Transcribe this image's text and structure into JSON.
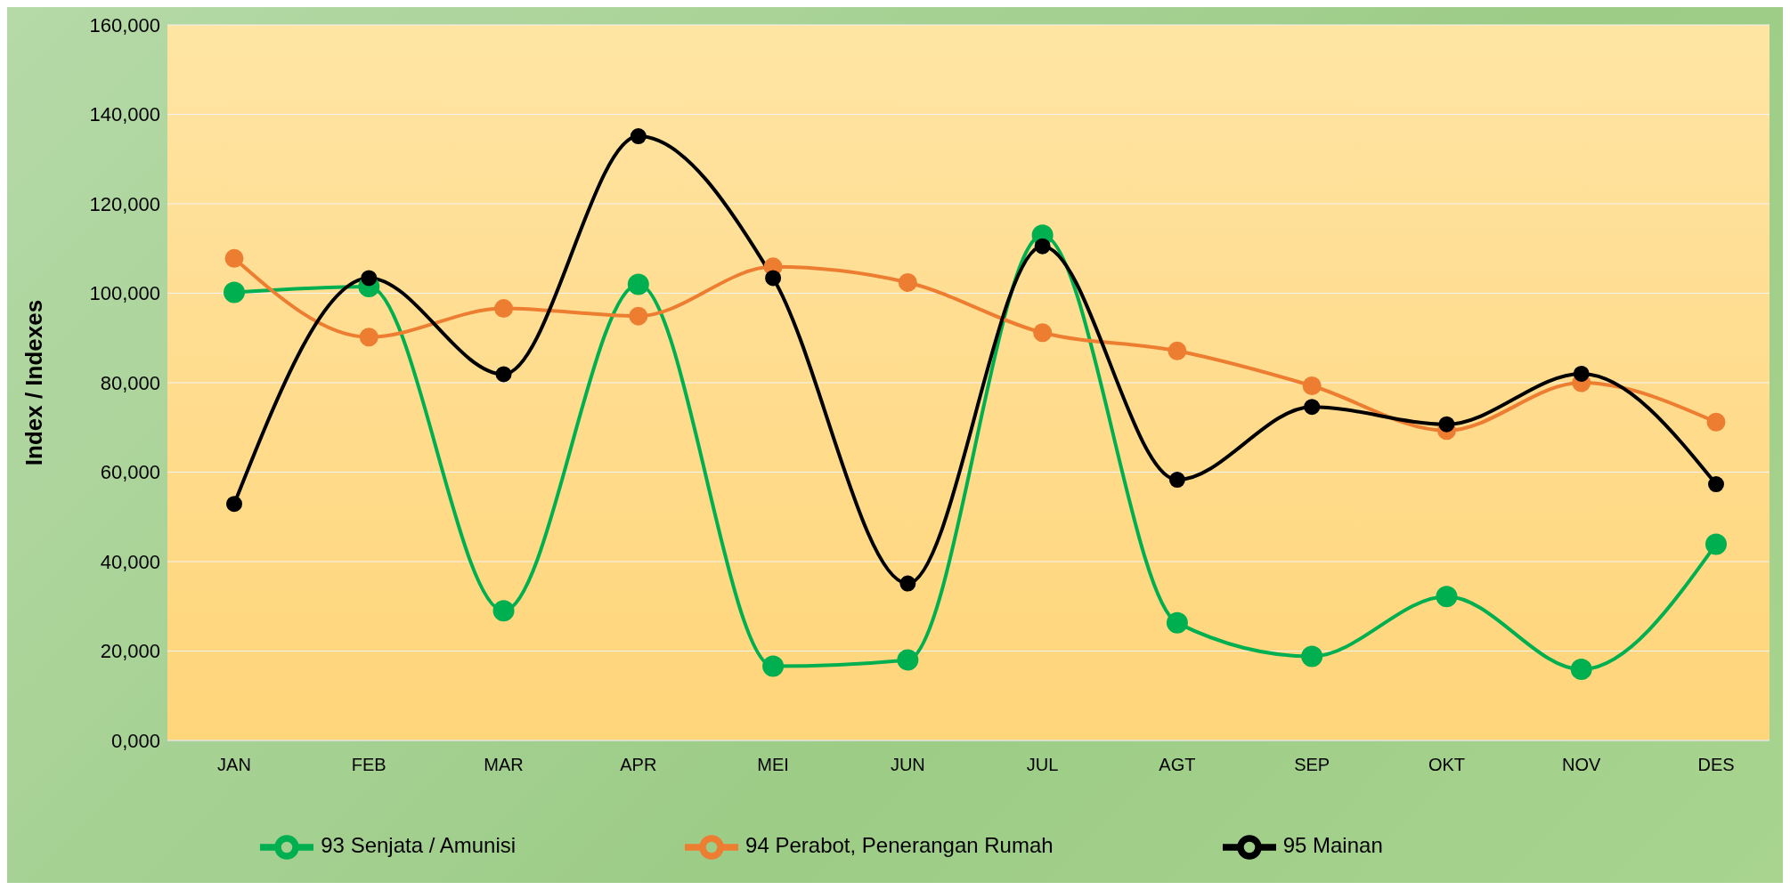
{
  "chart_data": {
    "type": "line",
    "ylabel": "Index / Indexes",
    "categories": [
      "JAN",
      "FEB",
      "MAR",
      "APR",
      "MEI",
      "JUN",
      "JUL",
      "AGT",
      "SEP",
      "OKT",
      "NOV",
      "DES"
    ],
    "series": [
      {
        "name": "93 Senjata / Amunisi",
        "color": "#00b050",
        "values": [
          100200,
          101500,
          29000,
          102000,
          16600,
          18000,
          113000,
          26300,
          18800,
          32200,
          15900,
          43900
        ]
      },
      {
        "name": "94 Perabot, Penerangan Rumah",
        "color": "#ed7d31",
        "values": [
          107800,
          90200,
          96600,
          94900,
          105900,
          102400,
          91200,
          87100,
          79300,
          69300,
          80000,
          71200
        ]
      },
      {
        "name": "95 Mainan",
        "color": "#000000",
        "values": [
          52900,
          103400,
          81900,
          135100,
          103400,
          35100,
          110500,
          58300,
          74600,
          70700,
          82000,
          57300
        ]
      }
    ],
    "ylim": [
      0,
      160000
    ],
    "yticks": [
      {
        "value": 0,
        "label": "0,000"
      },
      {
        "value": 20000,
        "label": "20,000"
      },
      {
        "value": 40000,
        "label": "40,000"
      },
      {
        "value": 60000,
        "label": "60,000"
      },
      {
        "value": 80000,
        "label": "80,000"
      },
      {
        "value": 100000,
        "label": "100,000"
      },
      {
        "value": 120000,
        "label": "120,000"
      },
      {
        "value": 140000,
        "label": "140,000"
      },
      {
        "value": 160000,
        "label": "160,000"
      }
    ],
    "grid": "y",
    "legend": "bottom",
    "marker": "circle",
    "line_style": "solid"
  }
}
